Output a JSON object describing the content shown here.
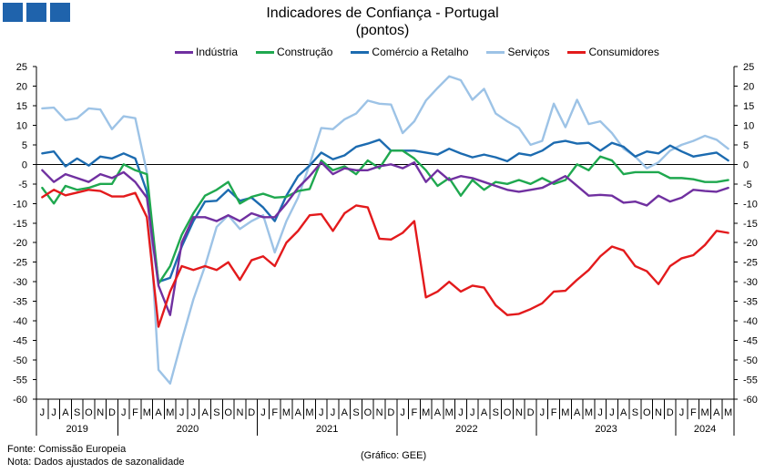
{
  "header": {
    "logo_color": "#1F63AC"
  },
  "chart_data": {
    "type": "line",
    "title": "Indicadores de Confiança - Portugal",
    "subtitle": "(pontos)",
    "legend_placement": "top",
    "grid": false,
    "zero_line": true,
    "secondary_axis_mirrored": true,
    "ylim": [
      -60,
      25
    ],
    "yticks": [
      25,
      20,
      15,
      10,
      5,
      0,
      -5,
      -10,
      -15,
      -20,
      -25,
      -30,
      -35,
      -40,
      -45,
      -50,
      -55,
      -60
    ],
    "x": [
      "2019-06",
      "2019-07",
      "2019-08",
      "2019-09",
      "2019-10",
      "2019-11",
      "2019-12",
      "2020-01",
      "2020-02",
      "2020-03",
      "2020-04",
      "2020-05",
      "2020-06",
      "2020-07",
      "2020-08",
      "2020-09",
      "2020-10",
      "2020-11",
      "2020-12",
      "2021-01",
      "2021-02",
      "2021-03",
      "2021-04",
      "2021-05",
      "2021-06",
      "2021-07",
      "2021-08",
      "2021-09",
      "2021-10",
      "2021-11",
      "2021-12",
      "2022-01",
      "2022-02",
      "2022-03",
      "2022-04",
      "2022-05",
      "2022-06",
      "2022-07",
      "2022-08",
      "2022-09",
      "2022-10",
      "2022-11",
      "2022-12",
      "2023-01",
      "2023-02",
      "2023-03",
      "2023-04",
      "2023-05",
      "2023-06",
      "2023-07",
      "2023-08",
      "2023-09",
      "2023-10",
      "2023-11",
      "2023-12",
      "2024-01",
      "2024-02",
      "2024-03",
      "2024-04",
      "2024-05"
    ],
    "x_tick_labels": [
      "J",
      "J",
      "A",
      "S",
      "O",
      "N",
      "D",
      "J",
      "F",
      "M",
      "A",
      "M",
      "J",
      "J",
      "A",
      "S",
      "O",
      "N",
      "D",
      "J",
      "F",
      "M",
      "A",
      "M",
      "J",
      "J",
      "A",
      "S",
      "O",
      "N",
      "D",
      "J",
      "F",
      "M",
      "A",
      "M",
      "J",
      "J",
      "A",
      "S",
      "O",
      "N",
      "D",
      "J",
      "F",
      "M",
      "A",
      "M",
      "J",
      "J",
      "A",
      "S",
      "O",
      "N",
      "D",
      "J",
      "F",
      "M",
      "A",
      "M"
    ],
    "year_labels": [
      "2019",
      "2020",
      "2021",
      "2022",
      "2023",
      "2024"
    ],
    "series": [
      {
        "name": "Indústria",
        "color": "#7030A0",
        "values": [
          -1.5,
          -4.5,
          -2.5,
          -3.5,
          -4.5,
          -2.5,
          -3.5,
          -2.0,
          -4.5,
          -8.5,
          -31.0,
          -38.5,
          -20.0,
          -13.5,
          -13.5,
          -14.5,
          -13.0,
          -14.5,
          -12.5,
          -13.5,
          -13.5,
          -10.0,
          -6.0,
          -3.0,
          0.5,
          -2.5,
          -1.0,
          -1.5,
          -1.5,
          -0.5,
          0.0,
          -1.0,
          0.5,
          -4.5,
          -1.5,
          -4.0,
          -3.0,
          -3.5,
          -4.5,
          -5.5,
          -6.5,
          -7.0,
          -6.5,
          -6.0,
          -4.5,
          -3.0,
          -5.5,
          -8.0,
          -7.8,
          -8.0,
          -9.8,
          -9.5,
          -10.5,
          -8.0,
          -9.5,
          -8.5,
          -6.5,
          -6.8,
          -7.0,
          -6.0
        ]
      },
      {
        "name": "Construção",
        "color": "#1FA84F",
        "values": [
          -6.0,
          -10.0,
          -5.5,
          -6.5,
          -6.0,
          -5.0,
          -5.0,
          0.0,
          -1.5,
          -2.5,
          -30.5,
          -26.0,
          -18.0,
          -12.5,
          -8.0,
          -6.5,
          -4.5,
          -10.0,
          -8.3,
          -7.5,
          -8.5,
          -8.3,
          -6.8,
          -6.3,
          1.0,
          -1.5,
          -0.5,
          -2.5,
          1.0,
          -1.0,
          3.5,
          3.5,
          1.5,
          -1.5,
          -5.5,
          -3.5,
          -8.0,
          -4.0,
          -6.5,
          -4.5,
          -5.0,
          -4.0,
          -5.0,
          -3.5,
          -5.0,
          -4.0,
          0.0,
          -1.5,
          2.0,
          1.0,
          -2.5,
          -2.0,
          -2.0,
          -2.0,
          -3.5,
          -3.5,
          -3.8,
          -4.5,
          -4.5,
          -4.0
        ]
      },
      {
        "name": "Comércio a Retalho",
        "color": "#1C6BB0",
        "values": [
          2.8,
          3.3,
          -0.5,
          1.5,
          -0.3,
          2.0,
          1.5,
          2.8,
          1.5,
          -7.0,
          -30.0,
          -29.0,
          -21.0,
          -14.5,
          -9.5,
          -9.3,
          -6.5,
          -9.3,
          -8.5,
          -11.0,
          -14.5,
          -8.0,
          -3.0,
          -0.3,
          3.0,
          1.3,
          2.3,
          4.5,
          5.3,
          6.3,
          3.5,
          3.5,
          3.5,
          3.0,
          2.5,
          4.0,
          2.8,
          1.8,
          2.5,
          1.8,
          0.8,
          2.8,
          2.3,
          3.5,
          5.5,
          6.0,
          5.3,
          5.5,
          3.5,
          5.5,
          4.5,
          2.0,
          3.3,
          2.8,
          4.8,
          3.3,
          2.0,
          2.5,
          3.0,
          1.0
        ]
      },
      {
        "name": "Serviços",
        "color": "#9DC3E6",
        "values": [
          14.3,
          14.5,
          11.3,
          11.8,
          14.3,
          14.0,
          9.0,
          12.3,
          11.8,
          -2.0,
          -52.5,
          -56.0,
          -45.0,
          -34.5,
          -26.0,
          -16.0,
          -13.0,
          -16.5,
          -14.5,
          -13.0,
          -22.5,
          -14.5,
          -8.5,
          0.0,
          9.3,
          9.0,
          11.5,
          13.0,
          16.3,
          15.5,
          15.3,
          8.0,
          11.0,
          16.3,
          19.5,
          22.5,
          21.5,
          16.5,
          19.3,
          13.0,
          11.0,
          9.3,
          5.0,
          6.0,
          15.5,
          9.5,
          16.5,
          10.3,
          11.0,
          8.0,
          4.0,
          2.0,
          -1.0,
          0.5,
          3.5,
          5.0,
          6.0,
          7.3,
          6.3,
          4.0
        ]
      },
      {
        "name": "Consumidores",
        "color": "#E31A1C",
        "values": [
          -8.4,
          -6.5,
          -7.9,
          -7.2,
          -6.5,
          -6.8,
          -8.2,
          -8.2,
          -7.3,
          -13.5,
          -41.5,
          -32.5,
          -26.0,
          -27.0,
          -26.0,
          -27.0,
          -25.0,
          -29.5,
          -24.5,
          -23.5,
          -26.0,
          -20.0,
          -17.0,
          -13.0,
          -12.7,
          -17.0,
          -12.5,
          -10.5,
          -11.0,
          -19.0,
          -19.2,
          -17.5,
          -14.5,
          -34.0,
          -32.5,
          -30.0,
          -32.5,
          -31.0,
          -31.5,
          -36.0,
          -38.5,
          -38.2,
          -37.0,
          -35.5,
          -32.5,
          -32.3,
          -29.5,
          -27.0,
          -23.5,
          -21.0,
          -22.0,
          -26.0,
          -27.3,
          -30.6,
          -26.0,
          -24.0,
          -23.2,
          -20.6,
          -17.0,
          -17.5
        ]
      }
    ]
  },
  "footer": {
    "source": "Fonte: Comissão Europeia",
    "note": "Nota: Dados ajustados de sazonalidade",
    "credit": "(Gráfico: GEE)"
  }
}
